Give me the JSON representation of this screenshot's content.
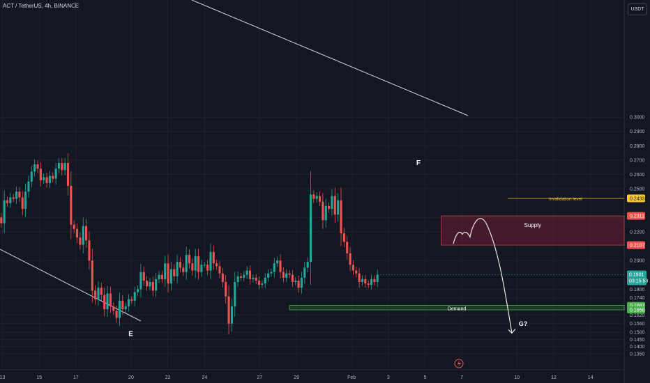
{
  "header": {
    "symbol": "ACT / TetherUS, 4h, BINANCE",
    "currency": "USDT"
  },
  "colors": {
    "background": "#131722",
    "up": "#26a69a",
    "down": "#ef5350",
    "supply": "#ef5350",
    "demand": "#4caf50",
    "invalidation": "#f5c542",
    "current": "#26a69a",
    "grid": "#1e222d",
    "text": "#b2b5be"
  },
  "chart_data": {
    "type": "candlestick",
    "title": "ACT / TetherUS, 4h, BINANCE",
    "ylim": [
      0.133,
      0.308
    ],
    "y_ticks": [
      "0.3000",
      "0.2900",
      "0.2800",
      "0.2700",
      "0.2600",
      "0.2500",
      "0.2300",
      "0.2200",
      "0.2000",
      "0.1800",
      "0.1740",
      "0.1620",
      "0.1560",
      "0.1500",
      "0.1450",
      "0.1400",
      "0.1350"
    ],
    "x_ticks": [
      {
        "label": "13",
        "x": 0
      },
      {
        "label": "15",
        "x": 12
      },
      {
        "label": "17",
        "x": 24
      },
      {
        "label": "20",
        "x": 42
      },
      {
        "label": "22",
        "x": 54
      },
      {
        "label": "24",
        "x": 66
      },
      {
        "label": "27",
        "x": 84
      },
      {
        "label": "29",
        "x": 96
      },
      {
        "label": "Feb",
        "x": 114
      },
      {
        "label": "3",
        "x": 126
      },
      {
        "label": "5",
        "x": 138
      },
      {
        "label": "7",
        "x": 150
      },
      {
        "label": "10",
        "x": 168
      },
      {
        "label": "12",
        "x": 180
      },
      {
        "label": "14",
        "x": 192
      }
    ],
    "closes": [
      0.226,
      0.242,
      0.24,
      0.244,
      0.243,
      0.248,
      0.244,
      0.236,
      0.248,
      0.255,
      0.262,
      0.267,
      0.264,
      0.256,
      0.258,
      0.254,
      0.259,
      0.257,
      0.264,
      0.268,
      0.263,
      0.268,
      0.252,
      0.225,
      0.222,
      0.216,
      0.211,
      0.224,
      0.214,
      0.2,
      0.179,
      0.173,
      0.181,
      0.176,
      0.166,
      0.177,
      0.168,
      0.165,
      0.16,
      0.172,
      0.166,
      0.168,
      0.173,
      0.172,
      0.178,
      0.18,
      0.192,
      0.186,
      0.182,
      0.185,
      0.179,
      0.187,
      0.19,
      0.187,
      0.198,
      0.184,
      0.194,
      0.189,
      0.199,
      0.195,
      0.192,
      0.204,
      0.198,
      0.193,
      0.203,
      0.192,
      0.197,
      0.197,
      0.193,
      0.206,
      0.198,
      0.196,
      0.191,
      0.185,
      0.175,
      0.156,
      0.168,
      0.185,
      0.189,
      0.188,
      0.19,
      0.193,
      0.187,
      0.188,
      0.186,
      0.183,
      0.184,
      0.188,
      0.191,
      0.192,
      0.198,
      0.2,
      0.192,
      0.188,
      0.191,
      0.19,
      0.185,
      0.186,
      0.181,
      0.188,
      0.195,
      0.199,
      0.246,
      0.243,
      0.245,
      0.241,
      0.228,
      0.238,
      0.236,
      0.245,
      0.232,
      0.242,
      0.219,
      0.213,
      0.205,
      0.197,
      0.193,
      0.191,
      0.185,
      0.187,
      0.184,
      0.183,
      0.187,
      0.185,
      0.1901
    ],
    "prices": {
      "last": "0.1901",
      "countdown": "03:15:53"
    },
    "annotations": {
      "label_f": "F",
      "label_e": "E",
      "label_g": "G?",
      "invalidation_text": "invalidation level",
      "invalidation_price": "0.2433",
      "supply_text": "Supply",
      "supply_top": "0.2311",
      "supply_bottom": "0.2107",
      "demand_text": "Demand",
      "demand_top": "0.1687",
      "demand_bottom": "0.1656"
    }
  }
}
